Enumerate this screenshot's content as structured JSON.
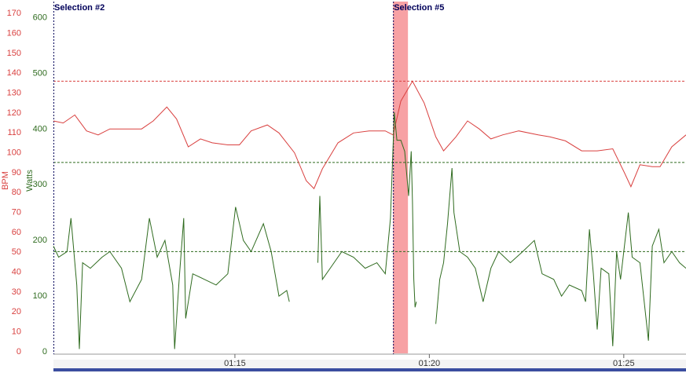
{
  "chart_data": {
    "type": "line",
    "ylabel": "BPM",
    "y2label": "Watts",
    "xlim": [
      4220,
      5196
    ],
    "xticks": [
      {
        "value": 4500,
        "label": "01:15"
      },
      {
        "value": 4800,
        "label": "01:20"
      },
      {
        "value": 5100,
        "label": "01:25"
      }
    ],
    "ylim": [
      0,
      176
    ],
    "yticks": [
      0,
      10,
      20,
      30,
      40,
      50,
      60,
      70,
      80,
      90,
      100,
      110,
      120,
      130,
      140,
      150,
      160,
      170
    ],
    "y2lim": [
      0,
      629
    ],
    "y2ticks": [
      0,
      100,
      200,
      300,
      400,
      500,
      600
    ],
    "ycolor": "#d9403f",
    "y2color": "#2f6b1f",
    "hlines": [
      {
        "value": 136,
        "axis": "y",
        "color": "#d9403f"
      },
      {
        "value": 340,
        "axis": "y2",
        "color": "#2f6b1f"
      },
      {
        "value": 180,
        "axis": "y2",
        "color": "#2f6b1f"
      }
    ],
    "selections": [
      {
        "label": "Selection #2",
        "x": 4220
      },
      {
        "label": "Selection #5",
        "x": 4744
      }
    ],
    "span": {
      "x": [
        4744,
        4767
      ],
      "color": "#f7a1a4"
    },
    "series": [
      {
        "axis": "y",
        "color": "#d9403f",
        "x": [
          4220,
          4235,
          4253,
          4271,
          4289,
          4307,
          4332,
          4356,
          4374,
          4395,
          4410,
          4428,
          4447,
          4465,
          4489,
          4507,
          4525,
          4550,
          4568,
          4592,
          4610,
          4622,
          4635,
          4659,
          4683,
          4707,
          4732,
          4744,
          4756,
          4774,
          4792,
          4810,
          4822,
          4841,
          4859,
          4877,
          4895,
          4913,
          4938,
          4968,
          4986,
          5010,
          5035,
          5059,
          5083,
          5101,
          5111,
          5125,
          5144,
          5156,
          5174,
          5196
        ],
        "values": [
          116,
          115,
          119,
          111,
          109,
          112,
          112,
          112,
          116,
          123,
          117,
          103,
          107,
          105,
          104,
          104,
          111,
          114,
          110,
          100,
          86,
          82,
          92,
          105,
          110,
          111,
          111,
          109,
          126,
          136,
          125,
          108,
          101,
          108,
          116,
          112,
          107,
          109,
          111,
          109,
          108,
          106,
          101,
          101,
          102,
          90,
          83,
          94,
          93,
          93,
          103,
          109
        ]
      },
      {
        "axis": "y2",
        "color": "#2f6b1f",
        "x": [
          4220,
          4228,
          4241,
          4247,
          4256,
          4260,
          4265,
          4277,
          4295,
          4307,
          4325,
          4338,
          4356,
          4368,
          4380,
          4392,
          4404,
          4407,
          4414,
          4421,
          4424,
          4435,
          4453,
          4471,
          4489,
          4501,
          4513,
          4525,
          4544,
          4556,
          4568,
          4580,
          4584,
          4605,
          4628,
          4631,
          4635,
          4647,
          4665,
          4683,
          4701,
          4719,
          4732,
          4740,
          4746,
          4750,
          4756,
          4762,
          4768,
          4772,
          4774,
          4776,
          4778,
          4780,
          4800,
          4810,
          4816,
          4822,
          4828,
          4835,
          4838,
          4847,
          4859,
          4871,
          4883,
          4895,
          4907,
          4925,
          4944,
          4962,
          4974,
          4992,
          5004,
          5016,
          5035,
          5041,
          5047,
          5053,
          5059,
          5065,
          5077,
          5083,
          5089,
          5095,
          5107,
          5113,
          5125,
          5138,
          5144,
          5154,
          5162,
          5174,
          5186,
          5196
        ],
        "values": [
          190,
          170,
          180,
          240,
          120,
          5,
          160,
          150,
          170,
          180,
          150,
          90,
          130,
          240,
          170,
          200,
          120,
          5,
          130,
          240,
          60,
          140,
          130,
          120,
          140,
          260,
          200,
          180,
          230,
          180,
          100,
          110,
          90,
          null,
          160,
          280,
          130,
          150,
          180,
          170,
          150,
          160,
          140,
          240,
          430,
          380,
          380,
          360,
          280,
          360,
          270,
          130,
          80,
          90,
          null,
          50,
          130,
          160,
          230,
          330,
          250,
          180,
          170,
          150,
          90,
          150,
          180,
          160,
          180,
          200,
          140,
          130,
          100,
          120,
          110,
          90,
          220,
          140,
          40,
          150,
          140,
          10,
          180,
          130,
          250,
          170,
          160,
          20,
          190,
          220,
          160,
          180,
          160,
          150
        ]
      }
    ]
  }
}
